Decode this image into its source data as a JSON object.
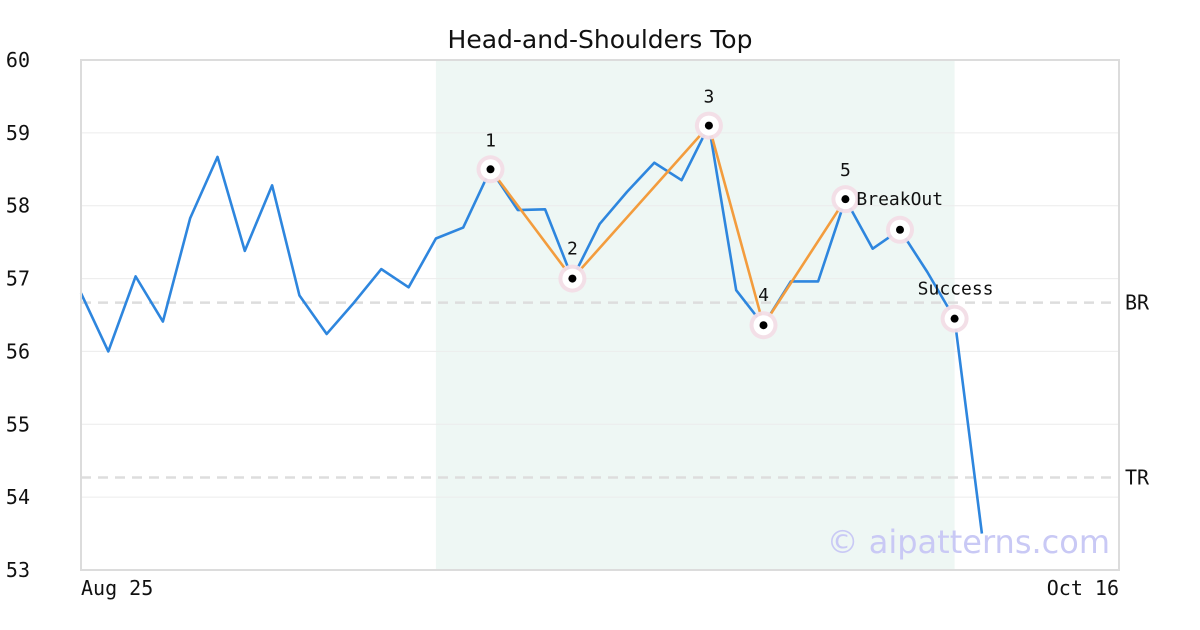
{
  "chart_data": {
    "type": "line",
    "title": "Head-and-Shoulders Top",
    "xlabel": "",
    "ylabel": "",
    "ylim": [
      53,
      60
    ],
    "yticks": [
      53,
      54,
      55,
      56,
      57,
      58,
      59,
      60
    ],
    "x_tick_labels": [
      "Aug 25",
      "Oct 16"
    ],
    "grid": true,
    "series": [
      {
        "values": [
          56.8,
          56.0,
          57.03,
          56.41,
          57.83,
          58.67,
          57.38,
          58.28,
          56.77,
          56.24,
          56.67,
          57.13,
          56.88,
          57.55,
          57.7,
          58.5,
          57.94,
          57.95,
          57.0,
          57.75,
          58.19,
          58.59,
          58.35,
          59.1,
          56.84,
          56.36,
          56.96,
          56.96,
          58.09,
          57.41,
          57.67,
          57.09,
          56.45,
          53.5
        ],
        "color": "#2e86de"
      }
    ],
    "pattern": {
      "color": "#f39c3d",
      "points": [
        {
          "index": 15,
          "value": 58.5,
          "label": "1"
        },
        {
          "index": 18,
          "value": 57.0,
          "label": "2"
        },
        {
          "index": 23,
          "value": 59.1,
          "label": "3"
        },
        {
          "index": 25,
          "value": 56.36,
          "label": "4"
        },
        {
          "index": 28,
          "value": 58.09,
          "label": "5"
        }
      ]
    },
    "markers": [
      {
        "index": 15,
        "value": 58.5
      },
      {
        "index": 18,
        "value": 57.0
      },
      {
        "index": 23,
        "value": 59.1
      },
      {
        "index": 25,
        "value": 56.36
      },
      {
        "index": 28,
        "value": 58.09
      },
      {
        "index": 30,
        "value": 57.67
      },
      {
        "index": 32,
        "value": 56.45
      }
    ],
    "annotations": [
      {
        "index": 28,
        "value": 58.09,
        "text": "BreakOut"
      },
      {
        "index": 32,
        "value": 56.45,
        "text": "Success"
      }
    ],
    "pattern_region": {
      "start_index": 13,
      "end_index": 32,
      "color": "#eef7f4"
    },
    "reference_lines": [
      {
        "value": 56.67,
        "label": "BR"
      },
      {
        "value": 54.27,
        "label": "TR"
      }
    ],
    "watermark": "© aipatterns.com"
  }
}
